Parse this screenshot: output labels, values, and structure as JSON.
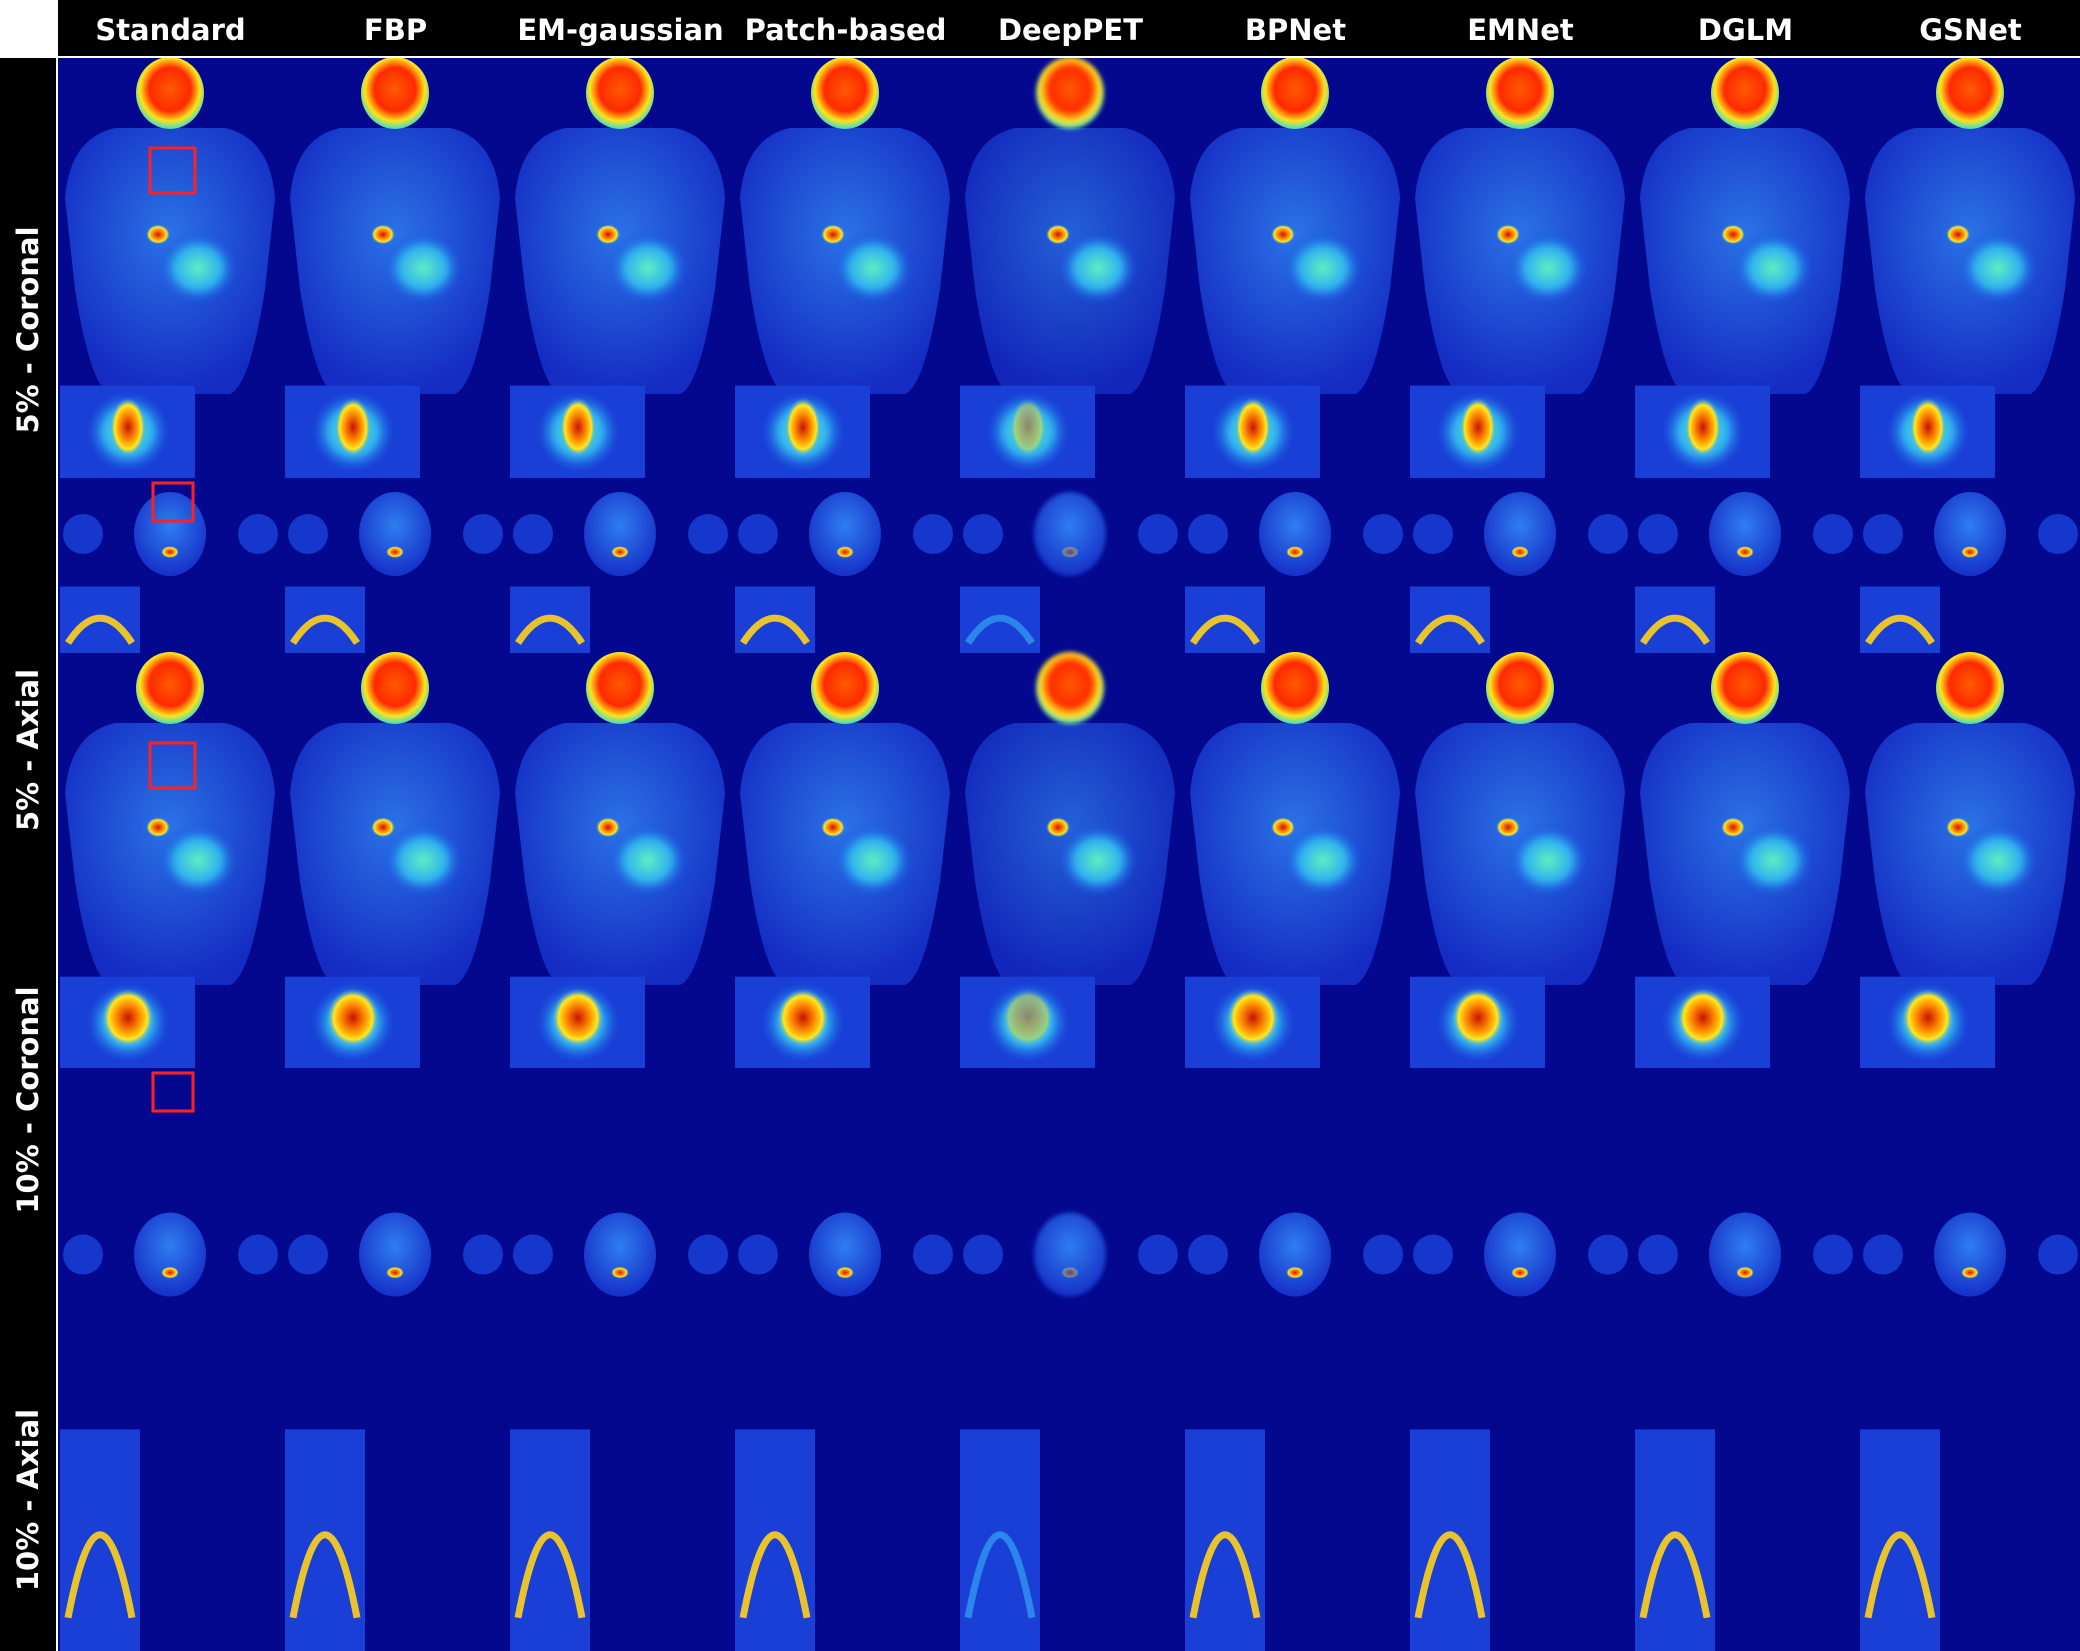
{
  "columns": [
    {
      "label": "Standard"
    },
    {
      "label": "FBP"
    },
    {
      "label": "EM-gaussian"
    },
    {
      "label": "Patch-based"
    },
    {
      "label": "DeepPET"
    },
    {
      "label": "BPNet"
    },
    {
      "label": "EMNet"
    },
    {
      "label": "DGLM"
    },
    {
      "label": "GSNet"
    }
  ],
  "rows": [
    {
      "label": "5% - Coronal",
      "view": "coronal"
    },
    {
      "label": "5% - Axial",
      "view": "axial"
    },
    {
      "label": "10% - Coronal",
      "view": "coronal"
    },
    {
      "label": "10% - Axial",
      "view": "axial"
    }
  ],
  "colors": {
    "background": "#04088e",
    "body_low": "#1a3fd6",
    "body_mid": "#2f8cf0",
    "uptake_high": "#ffd21a",
    "uptake_peak": "#d01800",
    "roi_box": "#ff2020"
  }
}
